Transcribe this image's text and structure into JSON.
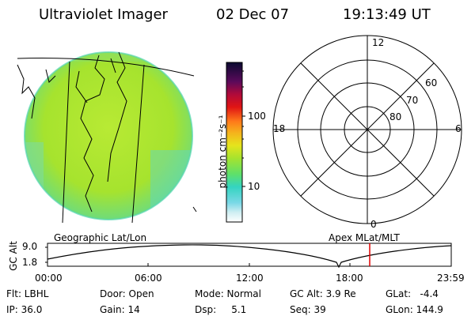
{
  "header": {
    "instrument": "Ultraviolet Imager",
    "date": "02 Dec 07",
    "time": "19:13:49 UT"
  },
  "colorbar": {
    "unit_label": "photon cm⁻²s⁻¹",
    "ticks": [
      "100",
      "10"
    ]
  },
  "polar_plot": {
    "mlt_labels": {
      "top": "12",
      "left": "18",
      "right": "6",
      "bottom": "0"
    },
    "lat_labels": [
      "60",
      "70",
      "80"
    ]
  },
  "left_label": "Geographic Lat/Lon",
  "right_label": "Apex MLat/MLT",
  "altitude_plot": {
    "ylabel": "GC Alt",
    "yticks": [
      "9.0",
      "1.8"
    ],
    "xticks": [
      "00:00",
      "06:00",
      "12:00",
      "18:00",
      "23:59"
    ]
  },
  "status": {
    "row1": {
      "filter": "Flt: LBHL",
      "door": "Door: Open",
      "mode": "Mode: Normal",
      "gc_alt": "GC Alt: 3.9 Re",
      "glat": "GLat:   -4.4"
    },
    "row2": {
      "ip": "IP: 36.0",
      "gain": "Gain: 14",
      "dsp": "Dsp:     5.1",
      "seq": "Seq: 39",
      "glon": "GLon: 144.9"
    }
  },
  "colors": {
    "disk_fill": "#a6e32e",
    "disk_edge": "#55d6b0",
    "marker": "#e00000"
  }
}
